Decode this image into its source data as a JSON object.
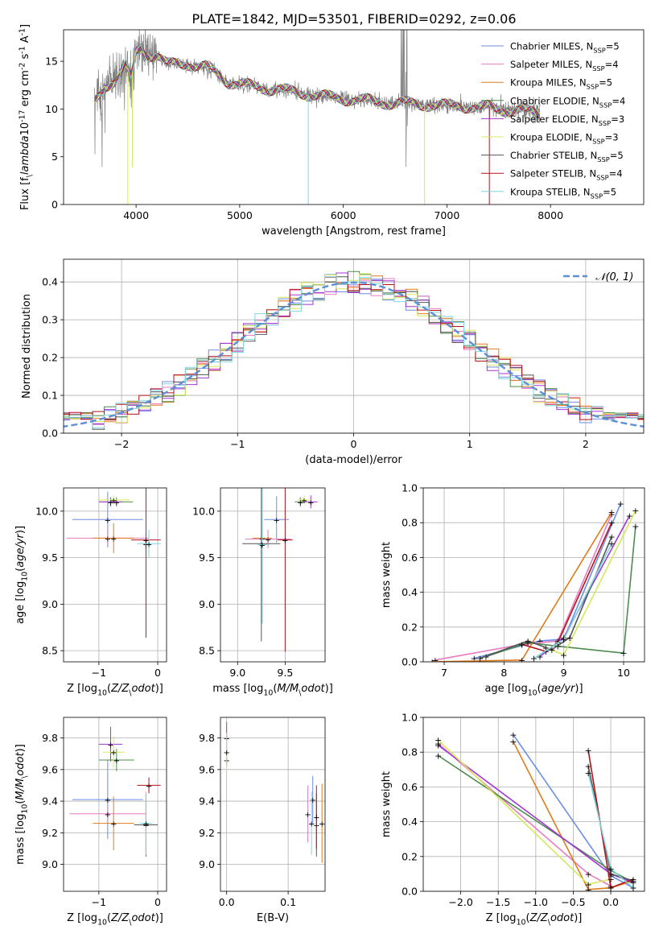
{
  "figure_title": "PLATE=1842, MJD=53501, FIBERID=0292, z=0.06",
  "colors": {
    "Chabrier MILES": "#6b8ee6",
    "Salpeter MILES": "#e97bc2",
    "Kroupa MILES": "#e07b1a",
    "Chabrier ELODIE": "#4f8b4f",
    "Salpeter ELODIE": "#a335d6",
    "Kroupa ELODIE": "#d4e85a",
    "Chabrier STELIB": "#555555",
    "Salpeter STELIB": "#b5121b",
    "Kroupa STELIB": "#7ed6df",
    "data": "#808080",
    "normal": "#5b8fd8"
  },
  "chart_data": [
    {
      "id": "spectrum",
      "type": "line",
      "xlabel": "wavelength [Angstrom, rest frame]",
      "ylabel": "Flux [f$_\\lambda$10$^{-17}$ erg cm$^{-2}$ s$^{-1}$ A$^{-1}$]",
      "xlim": [
        3300,
        8900
      ],
      "ylim": [
        0,
        18.3
      ],
      "xticks": [
        4000,
        5000,
        6000,
        7000,
        8000
      ],
      "yticks": [
        0,
        5,
        10,
        15
      ],
      "legend_position": "top-right",
      "legend": [
        "Chabrier MILES, N$_{SSP}$=5",
        "Salpeter MILES, N$_{SSP}$=4",
        "Kroupa MILES, N$_{SSP}$=5",
        "Chabrier ELODIE, N$_{SSP}$=4",
        "Salpeter ELODIE, N$_{SSP}$=3",
        "Kroupa ELODIE, N$_{SSP}$=3",
        "Chabrier STELIB, N$_{SSP}$=5",
        "Salpeter STELIB, N$_{SSP}$=4",
        "Kroupa STELIB, N$_{SSP}$=5"
      ],
      "continuum": {
        "x": [
          3600,
          3650,
          3700,
          3800,
          3900,
          3950,
          4000,
          4050,
          4100,
          4200,
          4300,
          4400,
          4500,
          4600,
          4700,
          4800,
          4850,
          4900,
          5000,
          5100,
          5200,
          5300,
          5400,
          5500,
          5600,
          5700,
          5800,
          5900,
          6000,
          6100,
          6200,
          6300,
          6400,
          6500,
          6600,
          6700,
          6800,
          6900,
          7000,
          7100,
          7200,
          7300,
          7400,
          7500,
          7600,
          7700,
          7800,
          7900
        ],
        "y": [
          10.8,
          11.5,
          12.5,
          13.0,
          14.5,
          13.0,
          16.0,
          16.5,
          15.8,
          15.6,
          14.6,
          14.8,
          14.8,
          14.4,
          14.3,
          13.6,
          13.2,
          12.8,
          12.6,
          12.4,
          12.3,
          12.1,
          12.0,
          11.8,
          11.7,
          11.5,
          11.3,
          11.2,
          11.1,
          11.0,
          10.9,
          10.8,
          10.7,
          10.6,
          10.6,
          10.5,
          10.5,
          10.4,
          10.3,
          10.4,
          10.3,
          10.1,
          10.2,
          10.0,
          9.9,
          9.8,
          9.7,
          9.6
        ]
      },
      "spikes": [
        {
          "x": 3920,
          "ymin": 0,
          "color": "Kroupa ELODIE"
        },
        {
          "x": 3965,
          "ymin": 3.9,
          "color": "Kroupa ELODIE"
        },
        {
          "x": 5662,
          "ymin": 0,
          "color": "Kroupa STELIB"
        },
        {
          "x": 6785,
          "ymin": 0,
          "color": "Kroupa ELODIE"
        },
        {
          "x": 7410,
          "ymin": 0,
          "color": "Salpeter STELIB"
        }
      ]
    },
    {
      "id": "residuals",
      "type": "line",
      "xlabel": "(data-model)/error",
      "ylabel": "Normed distribution",
      "xlim": [
        -2.5,
        2.5
      ],
      "ylim": [
        0,
        0.46
      ],
      "xticks": [
        -2,
        -1,
        0,
        1,
        2
      ],
      "yticks": [
        0.0,
        0.1,
        0.2,
        0.3,
        0.4
      ],
      "legend": [
        "$\\mathcal{N}(0,1)$"
      ],
      "legend_position": "top-right",
      "bin_width": 0.1,
      "grid": true
    },
    {
      "id": "age_vs_Z",
      "type": "scatter",
      "xlabel": "Z [log$_{10}$($Z/Z_\\odot$)]",
      "ylabel": "age  [log$_{10}$($age/yr$)]",
      "xlim": [
        -1.6,
        0.15
      ],
      "ylim": [
        8.38,
        10.25
      ],
      "xticks": [
        -1,
        0
      ],
      "yticks": [
        8.5,
        9.0,
        9.5,
        10.0
      ],
      "grid": true,
      "points": [
        {
          "model": "Chabrier MILES",
          "x": -0.85,
          "y": 9.91,
          "xerr": 0.6,
          "yerr": 0.3
        },
        {
          "model": "Salpeter MILES",
          "x": -0.85,
          "y": 9.71,
          "xerr": 0.7,
          "yerr": 0.08
        },
        {
          "model": "Kroupa MILES",
          "x": -0.75,
          "y": 9.71,
          "xerr": 0.35,
          "yerr": 0.16
        },
        {
          "model": "Chabrier ELODIE",
          "x": -0.7,
          "y": 10.1,
          "xerr": 0.28,
          "yerr": 0.05
        },
        {
          "model": "Salpeter ELODIE",
          "x": -0.8,
          "y": 10.1,
          "xerr": 0.2,
          "yerr": 0.05
        },
        {
          "model": "Kroupa ELODIE",
          "x": -0.75,
          "y": 10.12,
          "xerr": 0.27,
          "yerr": 0.05
        },
        {
          "model": "Chabrier STELIB",
          "x": -0.2,
          "y": 9.65,
          "xerr": 0.05,
          "yerr": 0.05
        },
        {
          "model": "Salpeter STELIB",
          "x": -0.2,
          "y": 9.69,
          "xerr": 0.25,
          "yerr": 1.05
        },
        {
          "model": "Kroupa STELIB",
          "x": -0.15,
          "y": 9.65,
          "xerr": 0.2,
          "yerr": 0.15
        }
      ]
    },
    {
      "id": "age_vs_mass",
      "type": "scatter",
      "xlabel": "mass [log$_{10}$($M/M_\\odot$)]",
      "ylabel": "",
      "xlim": [
        8.82,
        9.92
      ],
      "ylim": [
        8.38,
        10.25
      ],
      "xticks": [
        9.0,
        9.5
      ],
      "yticks": [
        8.5,
        9.0,
        9.5,
        10.0
      ],
      "grid": true,
      "points": [
        {
          "model": "Chabrier MILES",
          "x": 9.41,
          "y": 9.91,
          "xerr": 0.13,
          "yerr": 0.25
        },
        {
          "model": "Salpeter MILES",
          "x": 9.32,
          "y": 9.7,
          "xerr": 0.24,
          "yerr": 0.1
        },
        {
          "model": "Kroupa MILES",
          "x": 9.26,
          "y": 9.71,
          "xerr": 0.1,
          "yerr": 0.44
        },
        {
          "model": "Chabrier ELODIE",
          "x": 9.66,
          "y": 10.1,
          "xerr": 0.06,
          "yerr": 0.05
        },
        {
          "model": "Salpeter ELODIE",
          "x": 9.77,
          "y": 10.1,
          "xerr": 0.07,
          "yerr": 0.07
        },
        {
          "model": "Kroupa ELODIE",
          "x": 9.7,
          "y": 10.12,
          "xerr": 0.07,
          "yerr": 0.05
        },
        {
          "model": "Chabrier STELIB",
          "x": 9.25,
          "y": 9.65,
          "xerr": 0.2,
          "yerr": 1.05
        },
        {
          "model": "Salpeter STELIB",
          "x": 9.5,
          "y": 9.69,
          "xerr": 0.08,
          "yerr": 1.2
        },
        {
          "model": "Kroupa STELIB",
          "x": 9.26,
          "y": 9.64,
          "xerr": 0.05,
          "yerr": 0.85
        }
      ]
    },
    {
      "id": "weight_vs_age",
      "type": "line",
      "xlabel": "age  [log$_{10}$($age/yr$)]",
      "ylabel": "mass weight",
      "xlim": [
        6.65,
        10.35
      ],
      "ylim": [
        0,
        1.0
      ],
      "xticks": [
        7,
        8,
        9,
        10
      ],
      "yticks": [
        0.0,
        0.2,
        0.4,
        0.6,
        0.8,
        1.0
      ],
      "grid": true,
      "series": [
        {
          "model": "Chabrier MILES",
          "x": [
            7.5,
            8.6,
            9.0,
            9.95
          ],
          "y": [
            0.02,
            0.12,
            0.13,
            0.91
          ]
        },
        {
          "model": "Salpeter MILES",
          "x": [
            6.85,
            8.3,
            8.9,
            9.8
          ],
          "y": [
            0.01,
            0.1,
            0.12,
            0.85
          ]
        },
        {
          "model": "Kroupa MILES",
          "x": [
            6.8,
            8.3,
            9.8
          ],
          "y": [
            0.0,
            0.01,
            0.86
          ]
        },
        {
          "model": "Chabrier ELODIE",
          "x": [
            7.7,
            8.4,
            8.9,
            10.0,
            10.2
          ],
          "y": [
            0.03,
            0.11,
            0.09,
            0.05,
            0.78
          ]
        },
        {
          "model": "Salpeter ELODIE",
          "x": [
            8.6,
            9.0,
            10.1
          ],
          "y": [
            0.03,
            0.14,
            0.84
          ]
        },
        {
          "model": "Kroupa ELODIE",
          "x": [
            8.7,
            9.0,
            10.2
          ],
          "y": [
            0.08,
            0.04,
            0.87
          ]
        },
        {
          "model": "Chabrier STELIB",
          "x": [
            7.6,
            8.4,
            8.8,
            9.1,
            9.8
          ],
          "y": [
            0.02,
            0.12,
            0.07,
            0.14,
            0.72
          ]
        },
        {
          "model": "Salpeter STELIB",
          "x": [
            8.3,
            8.7,
            8.9,
            9.8
          ],
          "y": [
            0.1,
            0.06,
            0.11,
            0.8
          ]
        },
        {
          "model": "Kroupa STELIB",
          "x": [
            8.5,
            9.0,
            9.8
          ],
          "y": [
            0.02,
            0.13,
            0.68
          ]
        }
      ]
    },
    {
      "id": "mass_vs_Z",
      "type": "scatter",
      "xlabel": "Z [log$_{10}$($Z/Z_\\odot$)]",
      "ylabel": "mass [log$_{10}$($M/M_\\odot$)]",
      "xlim": [
        -1.6,
        0.15
      ],
      "ylim": [
        8.83,
        9.93
      ],
      "xticks": [
        -1,
        0
      ],
      "yticks": [
        9.0,
        9.2,
        9.4,
        9.6,
        9.8
      ],
      "grid": true,
      "points": [
        {
          "model": "Chabrier MILES",
          "x": -0.85,
          "y": 9.41,
          "xerr": 0.6,
          "yerr": 0.25
        },
        {
          "model": "Salpeter MILES",
          "x": -0.85,
          "y": 9.32,
          "xerr": 0.65,
          "yerr": 0.05
        },
        {
          "model": "Kroupa MILES",
          "x": -0.75,
          "y": 9.26,
          "xerr": 0.35,
          "yerr": 0.17
        },
        {
          "model": "Chabrier ELODIE",
          "x": -0.7,
          "y": 9.66,
          "xerr": 0.3,
          "yerr": 0.07
        },
        {
          "model": "Salpeter ELODIE",
          "x": -0.8,
          "y": 9.76,
          "xerr": 0.2,
          "yerr": 0.11
        },
        {
          "model": "Kroupa ELODIE",
          "x": -0.75,
          "y": 9.71,
          "xerr": 0.18,
          "yerr": 0.1
        },
        {
          "model": "Chabrier STELIB",
          "x": -0.2,
          "y": 9.25,
          "xerr": 0.2,
          "yerr": 0.2
        },
        {
          "model": "Salpeter STELIB",
          "x": -0.15,
          "y": 9.5,
          "xerr": 0.2,
          "yerr": 0.05
        },
        {
          "model": "Kroupa STELIB",
          "x": -0.2,
          "y": 9.26,
          "xerr": 0.1,
          "yerr": 0.2
        }
      ]
    },
    {
      "id": "mass_vs_ebv",
      "type": "scatter",
      "xlabel": "E(B-V)",
      "ylabel": "",
      "xlim": [
        -0.01,
        0.16
      ],
      "ylim": [
        8.83,
        9.93
      ],
      "xticks": [
        0.0,
        0.1
      ],
      "yticks": [
        9.0,
        9.2,
        9.4,
        9.6,
        9.8
      ],
      "grid": true,
      "points": [
        {
          "model": "Chabrier MILES",
          "x": 0.14,
          "y": 9.41,
          "xerr": 0,
          "yerr": 0.15
        },
        {
          "model": "Salpeter MILES",
          "x": 0.132,
          "y": 9.32,
          "xerr": 0,
          "yerr": 0.18
        },
        {
          "model": "Kroupa MILES",
          "x": 0.155,
          "y": 9.26,
          "xerr": 0,
          "yerr": 0.25
        },
        {
          "model": "Chabrier ELODIE",
          "x": 0.0,
          "y": 9.66,
          "xerr": 0,
          "yerr": 0.04
        },
        {
          "model": "Salpeter ELODIE",
          "x": 0.0,
          "y": 9.8,
          "xerr": 0,
          "yerr": 0.1
        },
        {
          "model": "Kroupa ELODIE",
          "x": 0.0,
          "y": 9.71,
          "xerr": 0,
          "yerr": 0.12
        },
        {
          "model": "Chabrier STELIB",
          "x": 0.146,
          "y": 9.25,
          "xerr": 0,
          "yerr": 0.2
        },
        {
          "model": "Salpeter STELIB",
          "x": 0.146,
          "y": 9.3,
          "xerr": 0,
          "yerr": 0.2
        },
        {
          "model": "Kroupa STELIB",
          "x": 0.138,
          "y": 9.26,
          "xerr": 0,
          "yerr": 0.2
        }
      ]
    },
    {
      "id": "weight_vs_Z",
      "type": "line",
      "xlabel": "Z [log$_{10}$($Z/Z_\\odot$)]",
      "ylabel": "mass weight",
      "xlim": [
        -2.5,
        0.45
      ],
      "ylim": [
        0,
        1.0
      ],
      "xticks": [
        -2.0,
        -1.5,
        -1.0,
        -0.5,
        0.0
      ],
      "yticks": [
        0.0,
        0.2,
        0.4,
        0.6,
        0.8,
        1.0
      ],
      "grid": true,
      "series": [
        {
          "model": "Chabrier MILES",
          "x": [
            -1.3,
            0.0,
            0.3
          ],
          "y": [
            0.9,
            0.09,
            0.02
          ]
        },
        {
          "model": "Salpeter MILES",
          "x": [
            -2.3,
            -0.3,
            0.0
          ],
          "y": [
            0.85,
            0.1,
            0.03
          ]
        },
        {
          "model": "Kroupa MILES",
          "x": [
            -1.3,
            -0.3,
            0.0,
            0.3
          ],
          "y": [
            0.86,
            0.01,
            0.02,
            0.06
          ]
        },
        {
          "model": "Chabrier ELODIE",
          "x": [
            -2.3,
            0.0,
            0.3
          ],
          "y": [
            0.78,
            0.12,
            0.05
          ]
        },
        {
          "model": "Salpeter ELODIE",
          "x": [
            -2.3,
            0.0,
            0.3
          ],
          "y": [
            0.84,
            0.1,
            0.05
          ]
        },
        {
          "model": "Kroupa ELODIE",
          "x": [
            -2.3,
            -0.3,
            0.0
          ],
          "y": [
            0.87,
            0.04,
            0.07
          ]
        },
        {
          "model": "Chabrier STELIB",
          "x": [
            -0.3,
            0.0,
            0.3
          ],
          "y": [
            0.72,
            0.1,
            0.06
          ]
        },
        {
          "model": "Salpeter STELIB",
          "x": [
            -0.3,
            0.0,
            0.3
          ],
          "y": [
            0.81,
            0.02,
            0.07
          ]
        },
        {
          "model": "Kroupa STELIB",
          "x": [
            -0.3,
            0.0,
            0.3
          ],
          "y": [
            0.68,
            0.13,
            0.02
          ]
        }
      ]
    }
  ]
}
